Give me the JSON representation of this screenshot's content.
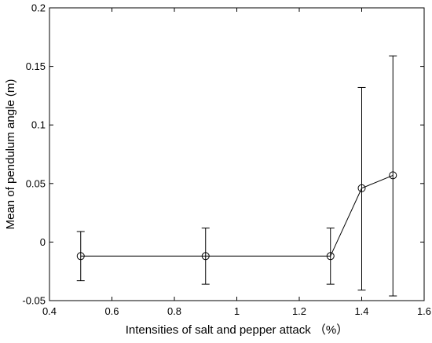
{
  "chart_data": {
    "type": "line",
    "title": "",
    "xlabel": "Intensities of salt and pepper attack （%）",
    "ylabel": "Mean of pendulum angle (m)",
    "xlim": [
      0.4,
      1.6
    ],
    "ylim": [
      -0.05,
      0.2
    ],
    "xticks": [
      0.4,
      0.6,
      0.8,
      1.0,
      1.2,
      1.4,
      1.6
    ],
    "xtick_labels": [
      "0.4",
      "0.6",
      "0.8",
      "1",
      "1.2",
      "1.4",
      "1.6"
    ],
    "yticks": [
      -0.05,
      0,
      0.05,
      0.1,
      0.15,
      0.2
    ],
    "ytick_labels": [
      "-0.05",
      "0",
      "0.05",
      "0.1",
      "0.15",
      "0.2"
    ],
    "grid": false,
    "legend": "none",
    "series": [
      {
        "x": [
          0.5,
          0.9,
          1.3,
          1.4,
          1.5
        ],
        "y": [
          -0.012,
          -0.012,
          -0.012,
          0.046,
          0.057
        ],
        "y_upper": [
          0.009,
          0.012,
          0.012,
          0.132,
          0.159
        ],
        "y_lower": [
          -0.033,
          -0.036,
          -0.036,
          -0.041,
          -0.046
        ],
        "marker": "circle",
        "color": "#000000"
      }
    ]
  }
}
